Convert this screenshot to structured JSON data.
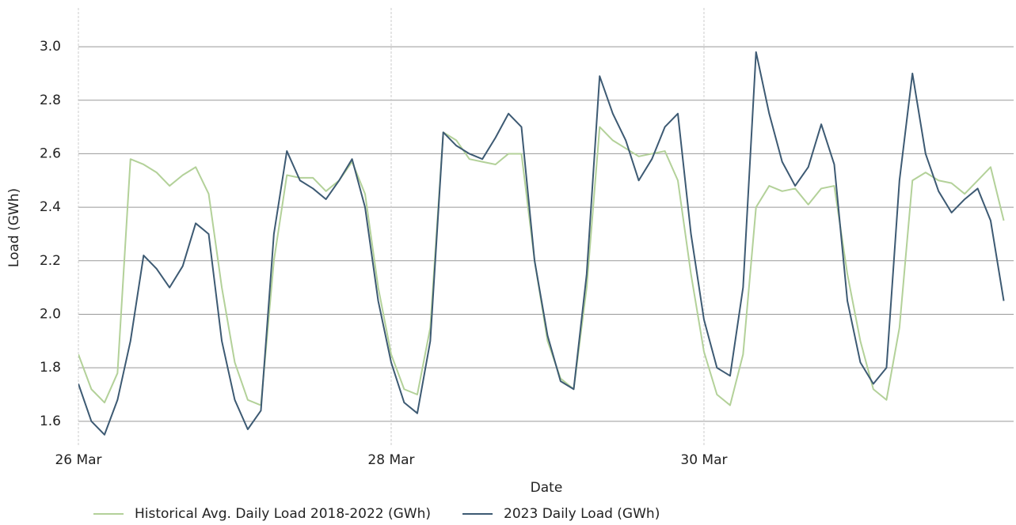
{
  "chart_data": {
    "type": "line",
    "x_label": "Date",
    "y_label": "Load (GWh)",
    "x": [
      0,
      0.083,
      0.167,
      0.25,
      0.333,
      0.417,
      0.5,
      0.583,
      0.667,
      0.75,
      0.833,
      0.917,
      1,
      1.083,
      1.167,
      1.25,
      1.333,
      1.417,
      1.5,
      1.583,
      1.667,
      1.75,
      1.833,
      1.917,
      2,
      2.083,
      2.167,
      2.25,
      2.333,
      2.417,
      2.5,
      2.583,
      2.667,
      2.75,
      2.833,
      2.917,
      3,
      3.083,
      3.167,
      3.25,
      3.333,
      3.417,
      3.5,
      3.583,
      3.667,
      3.75,
      3.833,
      3.917,
      4,
      4.083,
      4.167,
      4.25,
      4.333,
      4.417,
      4.5,
      4.583,
      4.667,
      4.75,
      4.833,
      4.917,
      5,
      5.083,
      5.167,
      5.25,
      5.333,
      5.417,
      5.5,
      5.583,
      5.667,
      5.75,
      5.833,
      5.917
    ],
    "series": [
      {
        "name": "Historical Avg. Daily Load 2018-2022 (GWh)",
        "color": "#b3d199",
        "values": [
          1.85,
          1.72,
          1.67,
          1.78,
          2.58,
          2.56,
          2.53,
          2.48,
          2.52,
          2.55,
          2.45,
          2.1,
          1.82,
          1.68,
          1.66,
          2.2,
          2.52,
          2.51,
          2.51,
          2.46,
          2.5,
          2.57,
          2.45,
          2.1,
          1.85,
          1.72,
          1.7,
          1.95,
          2.68,
          2.65,
          2.58,
          2.57,
          2.56,
          2.6,
          2.6,
          2.2,
          1.9,
          1.76,
          1.72,
          2.1,
          2.7,
          2.65,
          2.62,
          2.59,
          2.6,
          2.61,
          2.5,
          2.15,
          1.86,
          1.7,
          1.66,
          1.85,
          2.4,
          2.48,
          2.46,
          2.47,
          2.41,
          2.47,
          2.48,
          2.15,
          1.9,
          1.72,
          1.68,
          1.95,
          2.5,
          2.53,
          2.5,
          2.49,
          2.45,
          2.5,
          2.55,
          2.35
        ]
      },
      {
        "name": "2023 Daily Load (GWh)",
        "color": "#3d5a73",
        "values": [
          1.74,
          1.6,
          1.55,
          1.68,
          1.9,
          2.22,
          2.17,
          2.1,
          2.18,
          2.34,
          2.3,
          1.9,
          1.68,
          1.57,
          1.64,
          2.3,
          2.61,
          2.5,
          2.47,
          2.43,
          2.5,
          2.58,
          2.4,
          2.05,
          1.82,
          1.67,
          1.63,
          1.9,
          2.68,
          2.63,
          2.6,
          2.58,
          2.66,
          2.75,
          2.7,
          2.2,
          1.92,
          1.75,
          1.72,
          2.15,
          2.89,
          2.75,
          2.65,
          2.5,
          2.58,
          2.7,
          2.75,
          2.3,
          1.98,
          1.8,
          1.77,
          2.1,
          2.98,
          2.75,
          2.57,
          2.48,
          2.55,
          2.71,
          2.56,
          2.05,
          1.82,
          1.74,
          1.8,
          2.5,
          2.9,
          2.6,
          2.46,
          2.38,
          2.43,
          2.47,
          2.35,
          2.05
        ]
      }
    ],
    "xlim": [
      0,
      5.98
    ],
    "xticks": [
      {
        "value": 0,
        "label": "26 Mar"
      },
      {
        "value": 2,
        "label": "28 Mar"
      },
      {
        "value": 4,
        "label": "30 Mar"
      }
    ],
    "ylim": [
      1.505,
      3.145
    ],
    "yticks": [
      1.6,
      1.8,
      {
        "value": 2,
        "label": "2.0"
      },
      2.2,
      2.4,
      2.6,
      2.8,
      {
        "value": 3,
        "label": "3.0"
      }
    ],
    "grid": true,
    "legend": "bottom"
  }
}
